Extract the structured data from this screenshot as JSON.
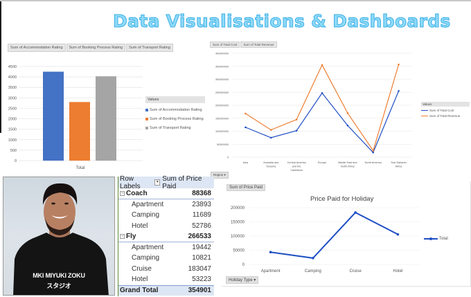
{
  "header": {
    "title": "Data Visualisations & Dashboards"
  },
  "bar_panel": {
    "field_buttons": [
      "Sum of Accommodation Rating",
      "Sum of Booking Process Rating",
      "Sum of Transport Rating"
    ],
    "legend_title": "Values",
    "legend": [
      "Sum of Accommodation Rating",
      "Sum of Booking Process Rating",
      "Sum of Transport Rating"
    ]
  },
  "line_panel": {
    "field_buttons": [
      "Sum of Total Cost",
      "Sum of Total Revenue"
    ],
    "legend_title": "Values",
    "legend": [
      "Sum of Total Cost",
      "Sum of Total Revenue"
    ],
    "filter_button": "Region"
  },
  "photo": {
    "shirt_text_line1": "MKI MIYUKI ZOKU",
    "shirt_text_line2": "スタジオ"
  },
  "pivot": {
    "header_row_labels": "Row Labels",
    "header_value": "Sum of Price Paid",
    "groups": [
      {
        "name": "Coach",
        "total": "88368",
        "children": [
          {
            "label": "Apartment",
            "value": "23893"
          },
          {
            "label": "Camping",
            "value": "11689"
          },
          {
            "label": "Hotel",
            "value": "52786"
          }
        ]
      },
      {
        "name": "Fly",
        "total": "266533",
        "children": [
          {
            "label": "Apartment",
            "value": "19442"
          },
          {
            "label": "Camping",
            "value": "10821"
          },
          {
            "label": "Cruise",
            "value": "183047"
          },
          {
            "label": "Hotel",
            "value": "53223"
          }
        ]
      }
    ],
    "grand_total_label": "Grand Total",
    "grand_total_value": "354901"
  },
  "holiday_panel": {
    "value_button": "Sum of Price Paid",
    "filter_button": "Holiday Type",
    "legend": "Total"
  },
  "colors": {
    "blue": "#4472c4",
    "orange": "#ed7d31",
    "gray": "#a5a5a5",
    "line_blue": "#1f4fc4",
    "title_fill": "#8fd9f7",
    "title_stroke": "#3ab0e8"
  },
  "chart_data": [
    {
      "type": "bar",
      "title": "",
      "categories": [
        "Total"
      ],
      "series": [
        {
          "name": "Sum of Accommodation Rating",
          "values": [
            4250
          ]
        },
        {
          "name": "Sum of Booking Process Rating",
          "values": [
            2800
          ]
        },
        {
          "name": "Sum of Transport Rating",
          "values": [
            4030
          ]
        }
      ],
      "xlabel": "",
      "ylabel": "",
      "yticks": [
        "0",
        "500",
        "1000",
        "1500",
        "2000",
        "2500",
        "3000",
        "3500",
        "4000",
        "4500"
      ],
      "ylim": [
        0,
        4500
      ],
      "grid": true,
      "legend_position": "right"
    },
    {
      "type": "line",
      "title": "",
      "categories": [
        "Asia",
        "Australia and Oceania",
        "Central America and the Caribbean",
        "Europe",
        "Middle East and North Africa",
        "North America",
        "Sub-Saharan Africa"
      ],
      "series": [
        {
          "name": "Sum of Total Cost",
          "values": [
            115000000,
            75000000,
            102000000,
            247000000,
            122000000,
            18000000,
            255000000
          ]
        },
        {
          "name": "Sum of Total Revenue",
          "values": [
            168000000,
            105000000,
            145000000,
            355000000,
            170000000,
            25000000,
            357000000
          ]
        }
      ],
      "xlabel": "",
      "ylabel": "",
      "yticks": [
        "0",
        "50000000",
        "100000000",
        "150000000",
        "200000000",
        "250000000",
        "300000000",
        "350000000",
        "400000000"
      ],
      "ylim": [
        0,
        400000000
      ],
      "grid": true,
      "legend_position": "right"
    },
    {
      "type": "line",
      "title": "Price Paid for Holiday",
      "categories": [
        "Apartment",
        "Camping",
        "Cruise",
        "Hotel"
      ],
      "series": [
        {
          "name": "Total",
          "values": [
            43335,
            22510,
            183047,
            106009
          ]
        }
      ],
      "xlabel": "",
      "ylabel": "",
      "yticks": [
        "0",
        "50000",
        "100000",
        "150000",
        "200000"
      ],
      "ylim": [
        0,
        200000
      ],
      "grid": true,
      "legend_position": "right"
    }
  ]
}
